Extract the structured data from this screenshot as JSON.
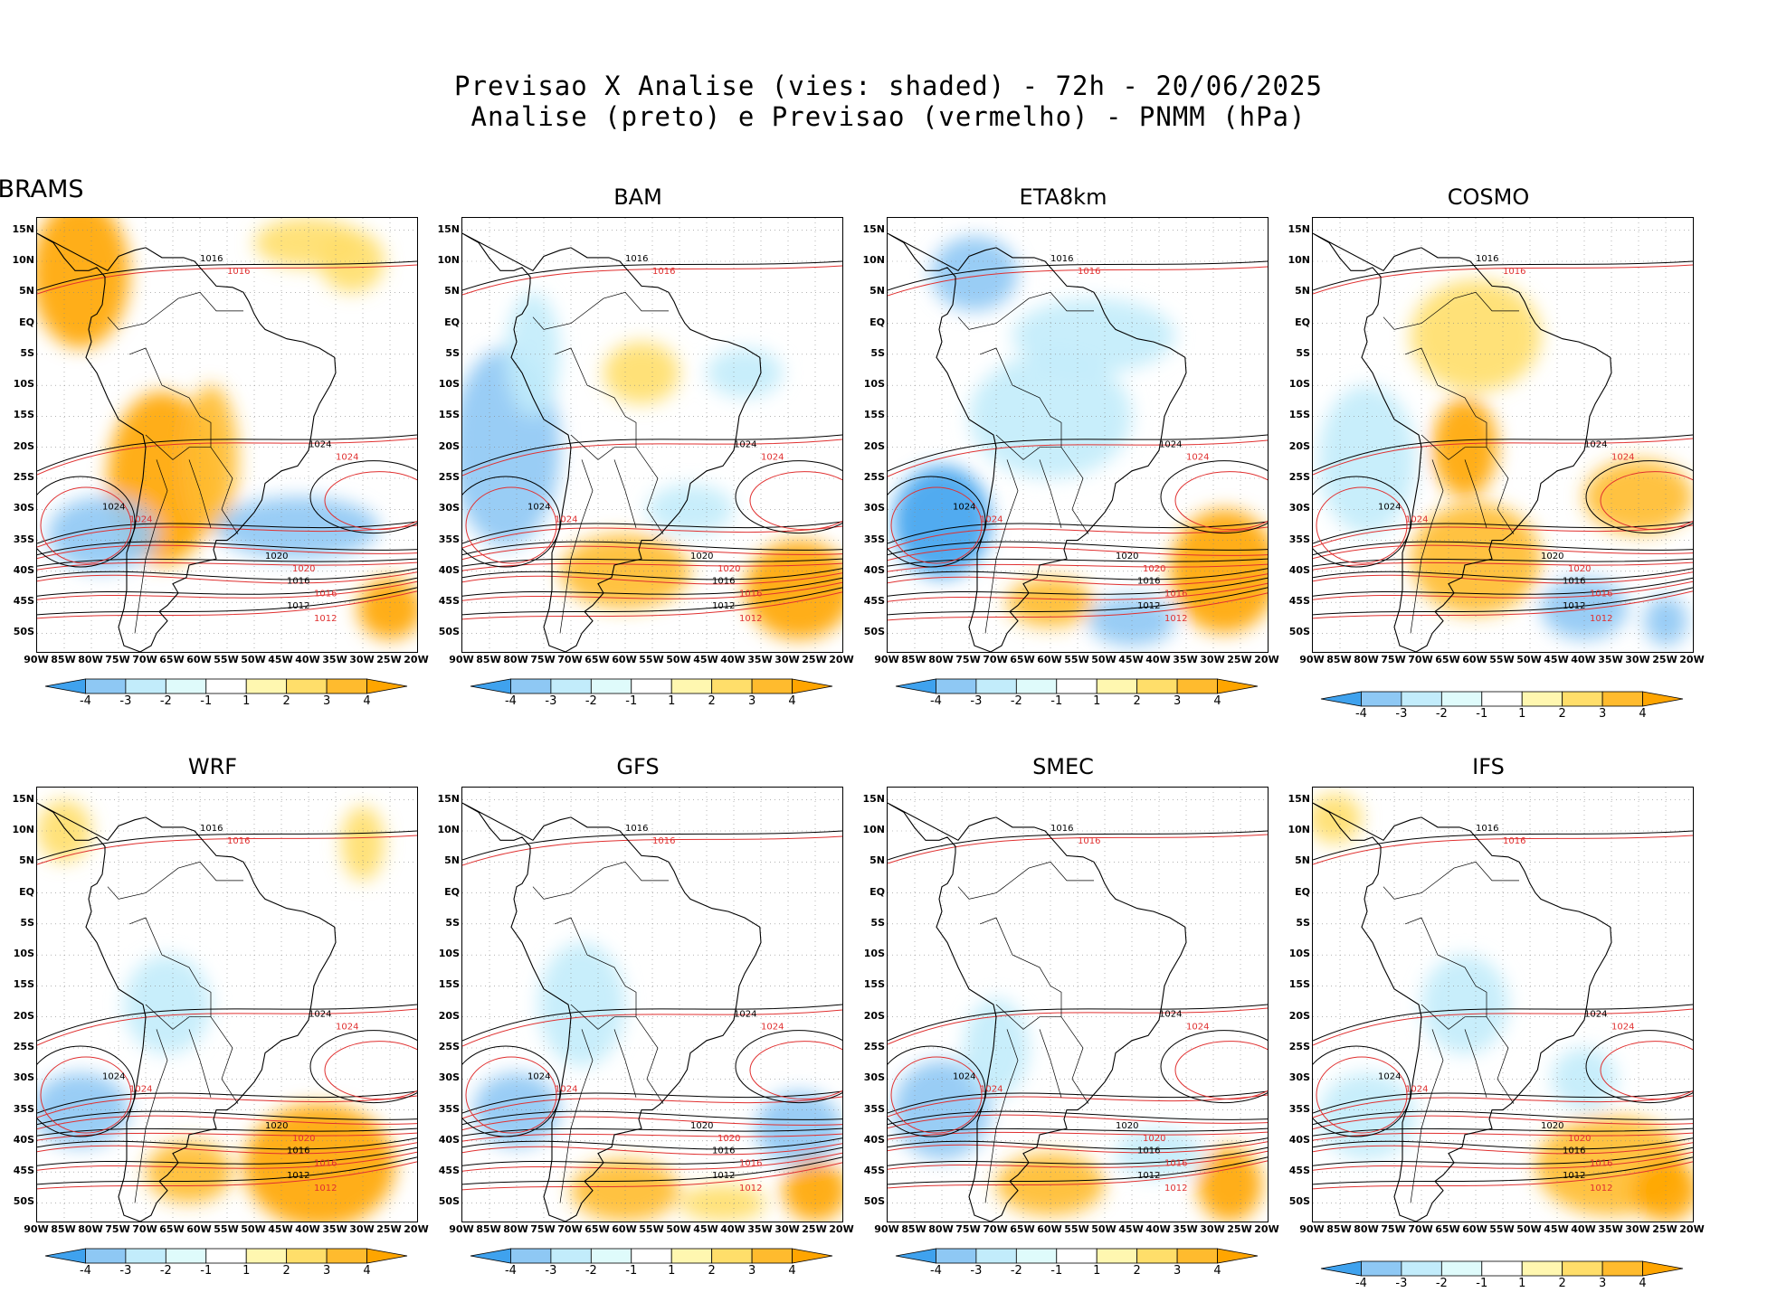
{
  "header": {
    "line1": "Previsao X Analise (vies: shaded) - 72h - 20/06/2025",
    "line2": "Analise (preto) e Previsao (vermelho) - PNMM (hPa)"
  },
  "axes": {
    "lat_labels": [
      "15N",
      "10N",
      "5N",
      "EQ",
      "5S",
      "10S",
      "15S",
      "20S",
      "25S",
      "30S",
      "35S",
      "40S",
      "45S",
      "50S"
    ],
    "lon_labels": [
      "90W",
      "85W",
      "80W",
      "75W",
      "70W",
      "65W",
      "60W",
      "55W",
      "50W",
      "45W",
      "40W",
      "35W",
      "30W",
      "25W",
      "20W"
    ]
  },
  "colorbar": {
    "labels": [
      "-4",
      "-3",
      "-2",
      "-1",
      "1",
      "2",
      "3",
      "4"
    ],
    "colors": [
      "#3fa2ee",
      "#8ec8f4",
      "#c2ecfb",
      "#dffbfb",
      "#ffffff",
      "#fff7b0",
      "#ffde6a",
      "#ffbb2e",
      "#ffa500"
    ]
  },
  "colors": {
    "analysis_contour": "#000000",
    "forecast_contour": "#e03030",
    "grid": "#888888"
  },
  "panels": [
    {
      "name": "BRAMS",
      "isobars_black": [
        "1008",
        "1012",
        "1016",
        "1020",
        "1024"
      ],
      "isobars_red": [
        "1008",
        "1012",
        "1016",
        "1020",
        "1024"
      ]
    },
    {
      "name": "BAM",
      "isobars_black": [
        "1008",
        "1012",
        "1016",
        "1020",
        "1024"
      ],
      "isobars_red": [
        "1012",
        "1016",
        "1020",
        "1024"
      ]
    },
    {
      "name": "ETA8km",
      "isobars_black": [
        "1008",
        "1012",
        "1016",
        "1020",
        "1024"
      ],
      "isobars_red": [
        "1008",
        "1012",
        "1016",
        "1020",
        "1024"
      ]
    },
    {
      "name": "COSMO",
      "isobars_black": [
        "1008",
        "1012",
        "1016",
        "1020",
        "1024"
      ],
      "isobars_red": [
        "1008",
        "1012",
        "1016",
        "1020",
        "1024"
      ]
    },
    {
      "name": "WRF",
      "isobars_black": [
        "1008",
        "1012",
        "1016",
        "1020",
        "1024"
      ],
      "isobars_red": [
        "1008",
        "1012",
        "1016",
        "1020",
        "1024"
      ]
    },
    {
      "name": "GFS",
      "isobars_black": [
        "1008",
        "1012",
        "1016",
        "1020",
        "1024"
      ],
      "isobars_red": [
        "1008",
        "1012",
        "1016",
        "1020",
        "1024"
      ]
    },
    {
      "name": "SMEC",
      "isobars_black": [
        "1008",
        "1012",
        "1016",
        "1020",
        "1024"
      ],
      "isobars_red": [
        "1008",
        "1012",
        "1016",
        "1020",
        "1024"
      ]
    },
    {
      "name": "IFS",
      "isobars_black": [
        "1008",
        "1012",
        "1016",
        "1020",
        "1024"
      ],
      "isobars_red": [
        "1008",
        "1012",
        "1016",
        "1020",
        "1024"
      ]
    }
  ]
}
